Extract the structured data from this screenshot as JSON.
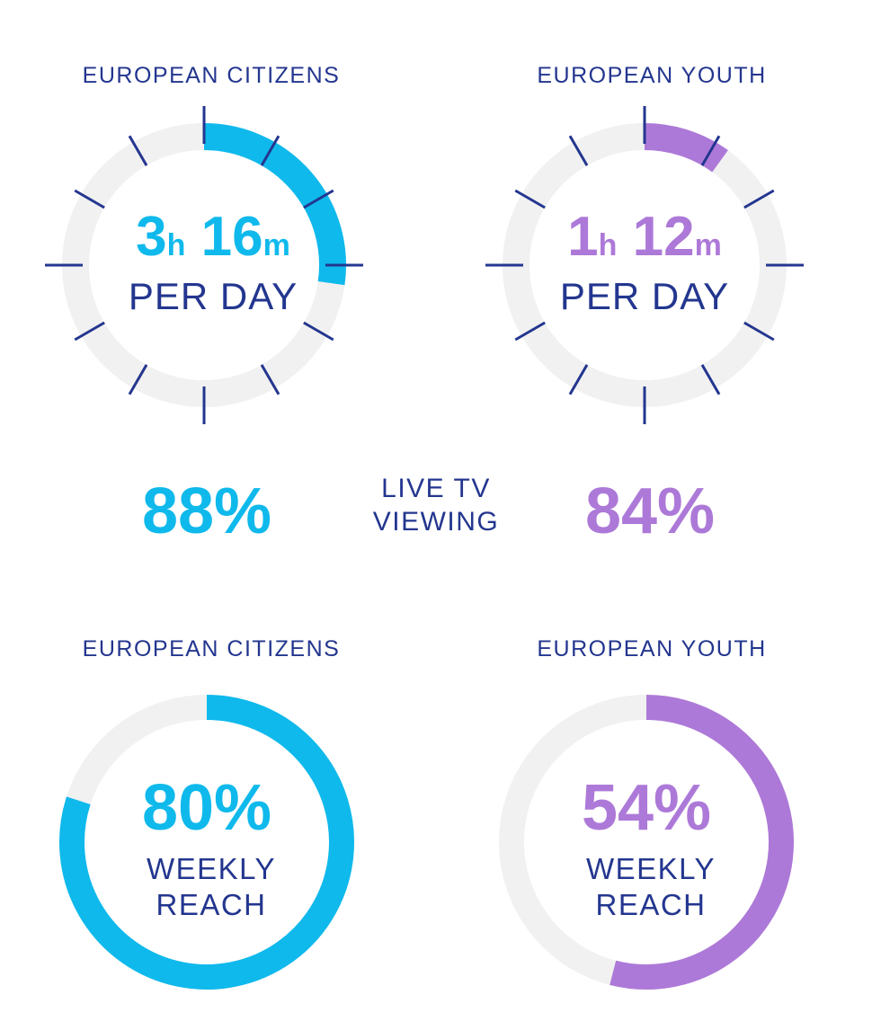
{
  "colors": {
    "citizens": "#0fb9ec",
    "youth": "#ad79d8",
    "text": "#23368f",
    "track": "#f1f1f1"
  },
  "top": {
    "citizens": {
      "label": "EUROPEAN CITIZENS",
      "hours": "3",
      "hour_unit": "h",
      "minutes": "16",
      "minute_unit": "m",
      "caption": "PER DAY"
    },
    "youth": {
      "label": "EUROPEAN YOUTH",
      "hours": "1",
      "hour_unit": "h",
      "minutes": "12",
      "minute_unit": "m",
      "caption": "PER DAY"
    }
  },
  "live": {
    "citizens_value": "88%",
    "youth_value": "84%",
    "caption_line1": "LIVE TV",
    "caption_line2": "VIEWING"
  },
  "bottom": {
    "citizens": {
      "label": "EUROPEAN CITIZENS",
      "value": "80%",
      "caption_line1": "WEEKLY",
      "caption_line2": "REACH"
    },
    "youth": {
      "label": "EUROPEAN YOUTH",
      "value": "54%",
      "caption_line1": "WEEKLY",
      "caption_line2": "REACH"
    }
  },
  "chart_data": [
    {
      "type": "pie",
      "series": [
        {
          "name": "EUROPEAN CITIZENS",
          "values": [
            3.27
          ]
        }
      ],
      "max": 12,
      "unit": "hours per day"
    },
    {
      "type": "pie",
      "series": [
        {
          "name": "EUROPEAN YOUTH",
          "values": [
            1.2
          ]
        }
      ],
      "max": 12,
      "unit": "hours per day"
    },
    {
      "type": "pie",
      "series": [
        {
          "name": "EUROPEAN CITIZENS",
          "values": [
            80
          ]
        }
      ],
      "max": 100,
      "unit": "%"
    },
    {
      "type": "pie",
      "series": [
        {
          "name": "EUROPEAN YOUTH",
          "values": [
            54
          ]
        }
      ],
      "max": 100,
      "unit": "%"
    }
  ]
}
